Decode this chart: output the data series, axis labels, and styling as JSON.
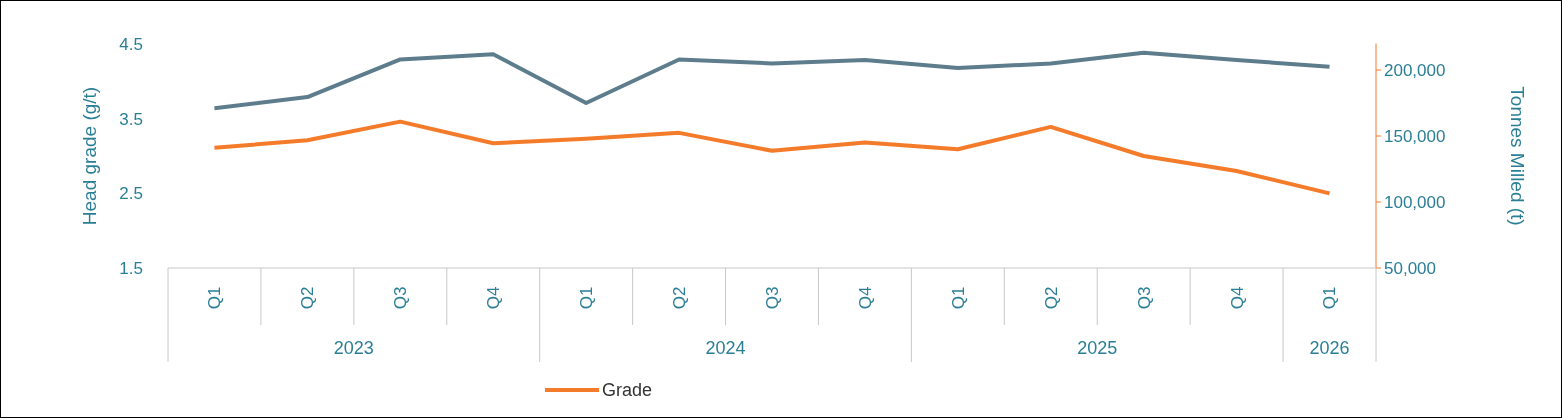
{
  "chart_data": {
    "type": "line",
    "categories": [
      "Q1",
      "Q2",
      "Q3",
      "Q4",
      "Q1",
      "Q2",
      "Q3",
      "Q4",
      "Q1",
      "Q2",
      "Q3",
      "Q4",
      "Q1"
    ],
    "annotations": [
      "2023",
      "2024",
      "2025",
      "2026"
    ],
    "ylabel": "Head grade (g/t)",
    "y2label": "Tonnes Milled (t)",
    "ylim": [
      1.5,
      4.5
    ],
    "yticks": [
      1.5,
      2.5,
      3.5,
      4.5
    ],
    "y2lim": [
      50000,
      220000
    ],
    "y2ticks": [
      {
        "value": 50000,
        "label": "50,000"
      },
      {
        "value": 100000,
        "label": "100,000"
      },
      {
        "value": 150000,
        "label": "150,000"
      },
      {
        "value": 200000,
        "label": "200,000"
      }
    ],
    "series": [
      {
        "color": "#5e7d8c",
        "axis": "y2",
        "values": [
          171000,
          179500,
          208000,
          212000,
          175000,
          208000,
          205000,
          207500,
          201500,
          205000,
          213000,
          207500,
          202500
        ]
      },
      {
        "name": "Grade",
        "color": "#f47b2a",
        "values": [
          3.11,
          3.21,
          3.46,
          3.17,
          3.23,
          3.31,
          3.07,
          3.18,
          3.09,
          3.39,
          3.0,
          2.8,
          2.5
        ]
      }
    ],
    "legend": "bottom",
    "grid": false,
    "marker": "none",
    "line_style": "solid"
  }
}
